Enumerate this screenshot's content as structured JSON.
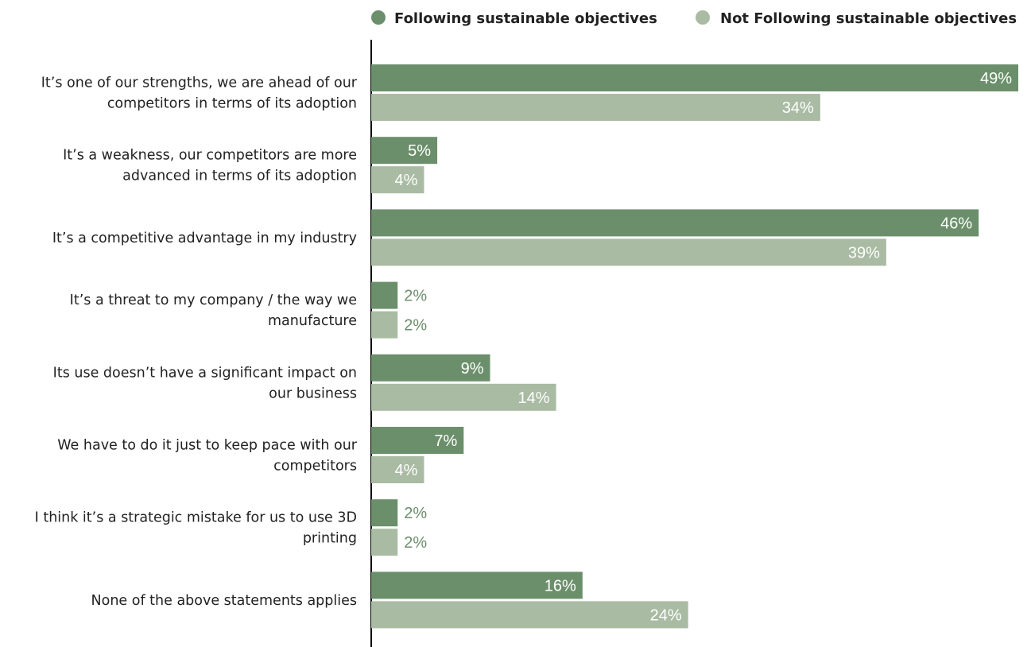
{
  "chart_data": {
    "type": "bar",
    "orientation": "horizontal",
    "categories": [
      [
        "It’s one of our strengths, we are ahead of our",
        "competitors in terms of its adoption"
      ],
      [
        "It’s a weakness, our competitors are more",
        "advanced in terms of its adoption"
      ],
      [
        "It’s a competitive advantage in my industry"
      ],
      [
        "It’s a threat to my company / the way we",
        "manufacture"
      ],
      [
        "Its use doesn’t have a significant impact on",
        "our business"
      ],
      [
        "We have to do it just to keep pace with our",
        "competitors"
      ],
      [
        "I think it’s a strategic mistake for us to use 3D",
        "printing"
      ],
      [
        "None of the above statements applies"
      ]
    ],
    "series": [
      {
        "name": "Following sustainable objectives",
        "color": "#6b8f6b",
        "values": [
          49,
          5,
          46,
          2,
          9,
          7,
          2,
          16
        ],
        "labels": [
          "49%",
          "5%",
          "46%",
          "2%",
          "9%",
          "7%",
          "2%",
          "16%"
        ]
      },
      {
        "name": "Not Following sustainable objectives",
        "color": "#a9bba3",
        "values": [
          34,
          4,
          39,
          2,
          14,
          4,
          2,
          24
        ],
        "labels": [
          "34%",
          "4%",
          "39%",
          "2%",
          "14%",
          "4%",
          "2%",
          "24%"
        ]
      }
    ],
    "xlim": [
      0,
      49
    ],
    "legend_position": "top",
    "grid": false,
    "title": "",
    "xlabel": "",
    "ylabel": ""
  }
}
